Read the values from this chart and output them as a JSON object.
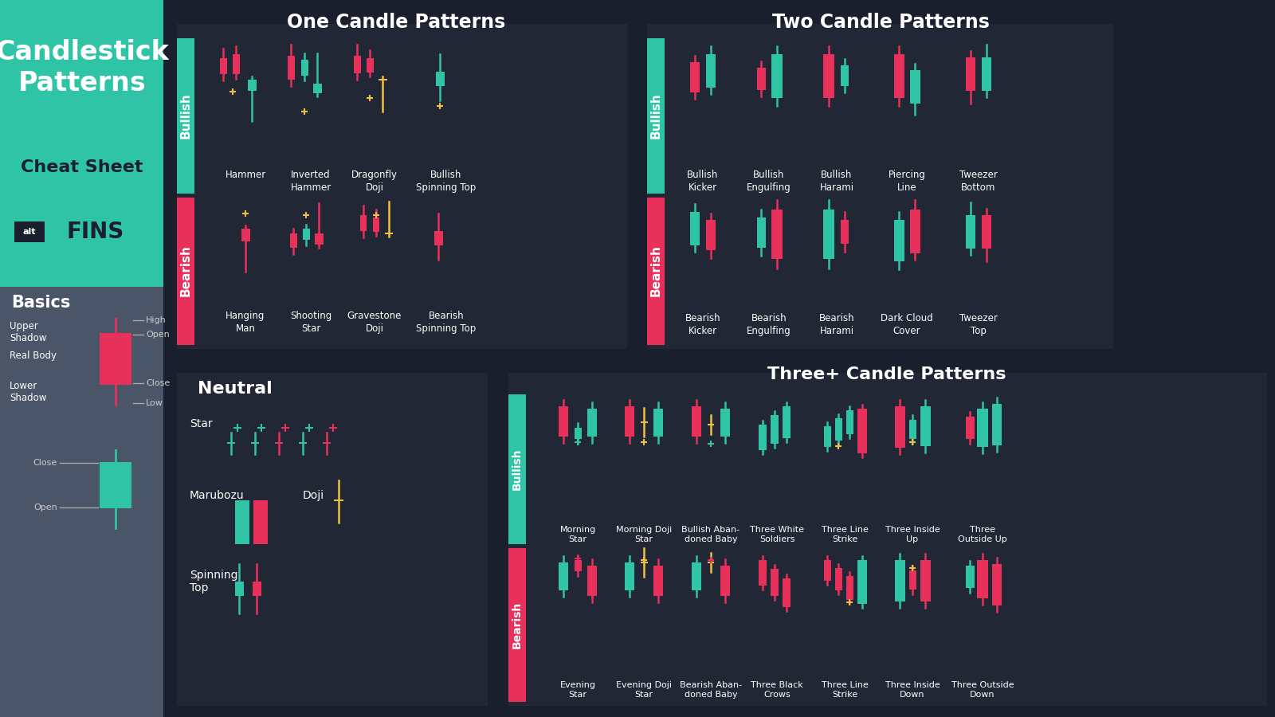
{
  "bg_dark": "#1a1f2e",
  "bg_panel": "#222736",
  "bg_teal": "#2ec4a5",
  "bg_gray": "#4a5568",
  "color_bull": "#2ec4a5",
  "color_bear": "#e8315a",
  "color_doji": "#f0c040",
  "color_white": "#ffffff",
  "title_one": "One Candle Patterns",
  "title_two": "Two Candle Patterns",
  "title_three": "Three+ Candle Patterns",
  "title_neutral": "Neutral",
  "title_basics": "Basics"
}
